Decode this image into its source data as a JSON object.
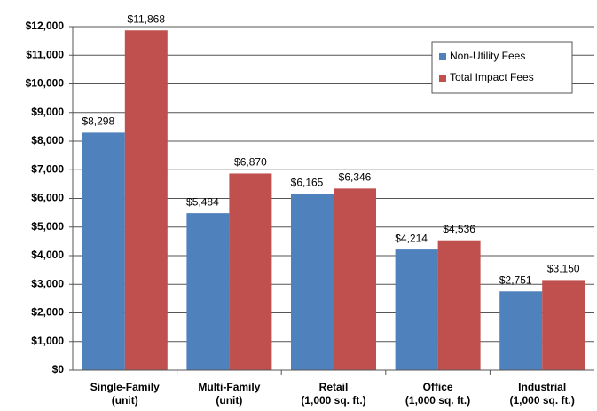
{
  "chart_data": {
    "type": "bar",
    "categories": [
      "Single-Family\n(unit)",
      "Multi-Family\n(unit)",
      "Retail\n(1,000 sq. ft.)",
      "Office\n(1,000 sq. ft.)",
      "Industrial\n(1,000 sq. ft.)"
    ],
    "series": [
      {
        "name": "Non-Utility Fees",
        "color": "#4f81bd",
        "values": [
          8298,
          5484,
          6165,
          4214,
          2751
        ],
        "value_labels": [
          "$8,298",
          "$5,484",
          "$6,165",
          "$4,214",
          "$2,751"
        ]
      },
      {
        "name": "Total Impact Fees",
        "color": "#c0504d",
        "values": [
          11868,
          6870,
          6346,
          4536,
          3150
        ],
        "value_labels": [
          "$11,868",
          "$6,870",
          "$6,346",
          "$4,536",
          "$3,150"
        ]
      }
    ],
    "ylim": [
      0,
      12000
    ],
    "yticks": [
      {
        "value": 0,
        "label": "$0"
      },
      {
        "value": 1000,
        "label": "$1,000"
      },
      {
        "value": 2000,
        "label": "$2,000"
      },
      {
        "value": 3000,
        "label": "$3,000"
      },
      {
        "value": 4000,
        "label": "$4,000"
      },
      {
        "value": 5000,
        "label": "$5,000"
      },
      {
        "value": 6000,
        "label": "$6,000"
      },
      {
        "value": 7000,
        "label": "$7,000"
      },
      {
        "value": 8000,
        "label": "$8,000"
      },
      {
        "value": 9000,
        "label": "$9,000"
      },
      {
        "value": 10000,
        "label": "$10,000"
      },
      {
        "value": 11000,
        "label": "$11,000"
      },
      {
        "value": 12000,
        "label": "$12,000"
      }
    ],
    "grid": true,
    "legend": "upper right"
  }
}
